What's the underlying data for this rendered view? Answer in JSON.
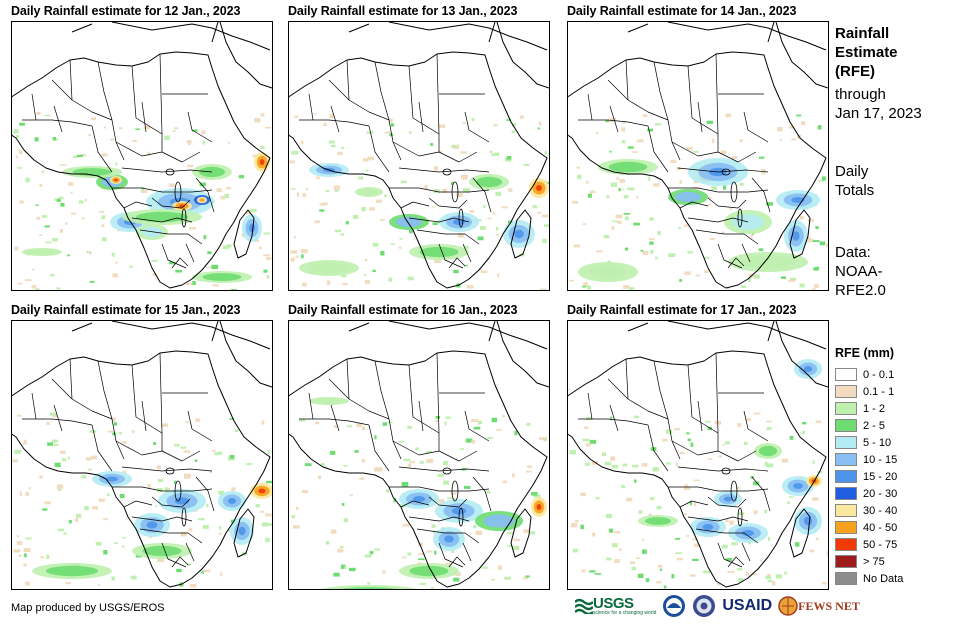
{
  "panels": [
    {
      "title": "Daily Rainfall estimate for 12 Jan., 2023"
    },
    {
      "title": "Daily Rainfall estimate for 13 Jan., 2023"
    },
    {
      "title": "Daily Rainfall estimate for 14 Jan., 2023"
    },
    {
      "title": "Daily Rainfall estimate for 15 Jan., 2023"
    },
    {
      "title": "Daily Rainfall estimate for 16 Jan., 2023"
    },
    {
      "title": "Daily Rainfall estimate for 17 Jan., 2023"
    }
  ],
  "side": {
    "title_l1": "Rainfall",
    "title_l2": "Estimate",
    "title_l3": "(RFE)",
    "sub_l1": "through",
    "sub_l2": "Jan 17, 2023",
    "daily_l1": "Daily",
    "daily_l2": "Totals",
    "data_l1": "Data:",
    "data_l2": "NOAA-",
    "data_l3": "RFE2.0"
  },
  "legend": {
    "title": "RFE (mm)",
    "items": [
      {
        "label": "0 - 0.1",
        "color": "#ffffff"
      },
      {
        "label": "0.1 - 1",
        "color": "#f1dcc0"
      },
      {
        "label": "1 - 2",
        "color": "#bff0b0"
      },
      {
        "label": "2 - 5",
        "color": "#6fdc72"
      },
      {
        "label": "5 - 10",
        "color": "#b5ecf4"
      },
      {
        "label": "10 - 15",
        "color": "#88bef2"
      },
      {
        "label": "15 - 20",
        "color": "#4d95ea"
      },
      {
        "label": "20 - 30",
        "color": "#1f5ee0"
      },
      {
        "label": "30 - 40",
        "color": "#fbe79e"
      },
      {
        "label": "40 - 50",
        "color": "#f6a21e"
      },
      {
        "label": "50 - 75",
        "color": "#f23a06"
      },
      {
        "label": "> 75",
        "color": "#9e1c1c"
      },
      {
        "label": "No Data",
        "color": "#8c8c8c"
      }
    ]
  },
  "credit": "Map produced by USGS/EROS",
  "logos": {
    "usgs": "USGS",
    "usgs_tag": "science for a changing world",
    "usaid": "USAID",
    "fews": "FEWS NET"
  }
}
